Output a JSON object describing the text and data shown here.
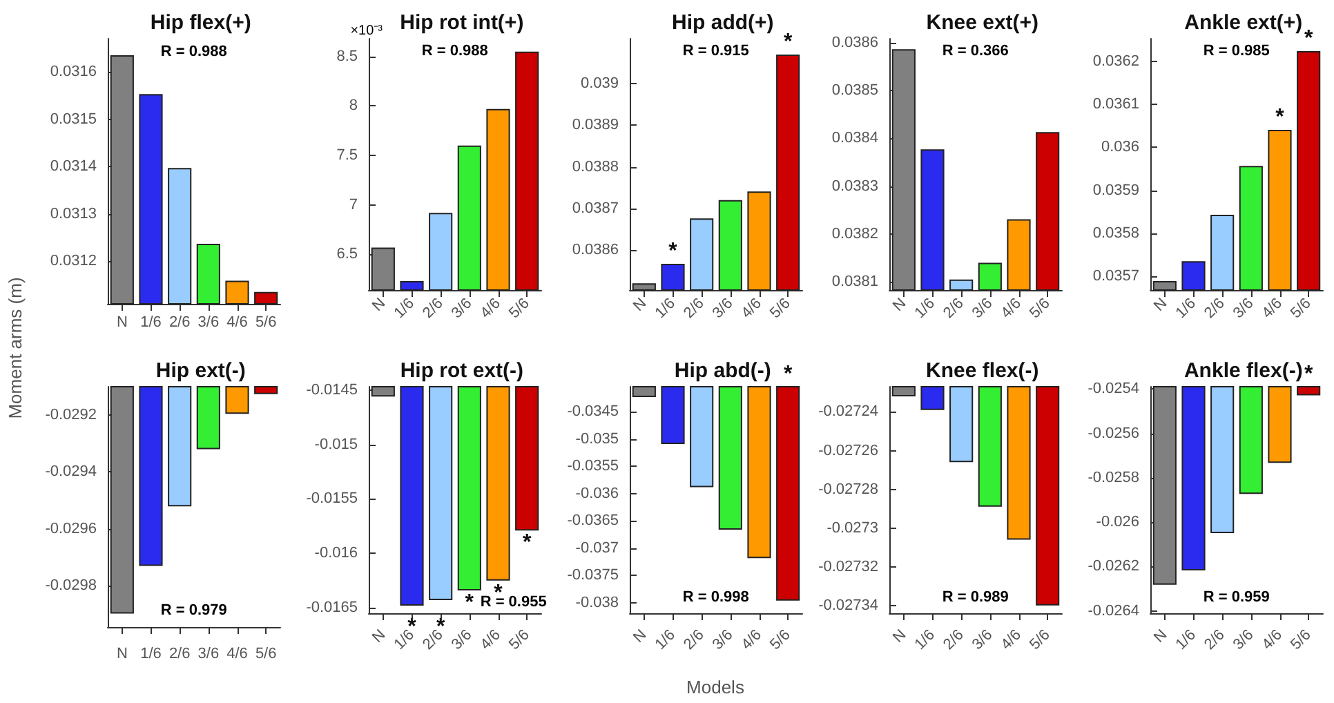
{
  "chart_data": [
    {
      "type": "bar",
      "title": "Hip flex(+)",
      "ylabel": "Moment arms (m)",
      "categories": [
        "N",
        "1/6",
        "2/6",
        "3/6",
        "4/6",
        "5/6"
      ],
      "values": [
        0.031635,
        0.031553,
        0.031397,
        0.031237,
        0.031159,
        0.031135
      ],
      "colors": [
        "#808080",
        "#2b2bf0",
        "#99ccff",
        "#33ee33",
        "#ff9900",
        "#cc0000"
      ],
      "ylim": [
        0.03111,
        0.03167
      ],
      "yticks": [
        0.0312,
        0.0313,
        0.0314,
        0.0315,
        0.0316
      ],
      "annotations": [
        "R = 0.988"
      ]
    },
    {
      "type": "bar",
      "title": "Hip rot int(+)",
      "categories": [
        "N",
        "1/6",
        "2/6",
        "3/6",
        "4/6",
        "5/6"
      ],
      "values": [
        6.57,
        6.23,
        6.92,
        7.6,
        7.97,
        8.55
      ],
      "colors": [
        "#808080",
        "#2b2bf0",
        "#99ccff",
        "#33ee33",
        "#ff9900",
        "#cc0000"
      ],
      "ylim": [
        6.14,
        8.68
      ],
      "yticks": [
        6.5,
        7,
        7.5,
        8,
        8.5
      ],
      "annotations": [
        "×10⁻³",
        "R = 0.988"
      ]
    },
    {
      "type": "bar",
      "title": "Hip add(+)",
      "categories": [
        "N",
        "1/6",
        "2/6",
        "3/6",
        "4/6",
        "5/6"
      ],
      "values": [
        0.03852,
        0.038567,
        0.038676,
        0.03872,
        0.038741,
        0.03907
      ],
      "colors": [
        "#808080",
        "#2b2bf0",
        "#99ccff",
        "#33ee33",
        "#ff9900",
        "#cc0000"
      ],
      "ylim": [
        0.038504,
        0.039108
      ],
      "yticks": [
        0.0386,
        0.0387,
        0.0388,
        0.0389,
        0.039
      ],
      "annotations": [
        "R = 0.915",
        {
          "text": "*",
          "x": "1/6",
          "y": 0.038567
        },
        {
          "text": "*",
          "x": "5/6",
          "y": 0.03907
        }
      ]
    },
    {
      "type": "bar",
      "title": "Knee ext(+)",
      "categories": [
        "N",
        "1/6",
        "2/6",
        "3/6",
        "4/6",
        "5/6"
      ],
      "values": [
        0.038586,
        0.038377,
        0.038105,
        0.03814,
        0.038231,
        0.038413
      ],
      "colors": [
        "#808080",
        "#2b2bf0",
        "#99ccff",
        "#33ee33",
        "#ff9900",
        "#cc0000"
      ],
      "ylim": [
        0.038083,
        0.038608
      ],
      "yticks": [
        0.0381,
        0.0382,
        0.0383,
        0.0384,
        0.0385,
        0.0386
      ],
      "annotations": [
        "R = 0.366"
      ]
    },
    {
      "type": "bar",
      "title": "Ankle ext(+)",
      "categories": [
        "N",
        "1/6",
        "2/6",
        "3/6",
        "4/6",
        "5/6"
      ],
      "values": [
        0.035689,
        0.035735,
        0.035843,
        0.035957,
        0.036041,
        0.036224
      ],
      "colors": [
        "#808080",
        "#2b2bf0",
        "#99ccff",
        "#33ee33",
        "#ff9900",
        "#cc0000"
      ],
      "ylim": [
        0.035668,
        0.036253
      ],
      "yticks": [
        0.0357,
        0.0358,
        0.0359,
        0.036,
        0.0361,
        0.0362
      ],
      "annotations": [
        "R = 0.985",
        {
          "text": "*",
          "x": "4/6",
          "y": 0.036041
        },
        {
          "text": "*",
          "x": "5/6",
          "y": 0.036224
        }
      ]
    },
    {
      "type": "bar",
      "title": "Hip ext(-)",
      "categories": [
        "N",
        "1/6",
        "2/6",
        "3/6",
        "4/6",
        "5/6"
      ],
      "values": [
        -0.029897,
        -0.02973,
        -0.029521,
        -0.029321,
        -0.029197,
        -0.029128
      ],
      "colors": [
        "#808080",
        "#2b2bf0",
        "#99ccff",
        "#33ee33",
        "#ff9900",
        "#cc0000"
      ],
      "ylim": [
        -0.029944,
        -0.029102
      ],
      "yticks": [
        -0.0298,
        -0.0296,
        -0.0294,
        -0.0292
      ],
      "annotations": [
        "R = 0.979"
      ]
    },
    {
      "type": "bar",
      "title": "Hip rot ext(-)",
      "categories": [
        "N",
        "1/6",
        "2/6",
        "3/6",
        "4/6",
        "5/6"
      ],
      "values": [
        -0.01456,
        -0.01648,
        -0.01643,
        -0.01634,
        -0.01625,
        -0.01579
      ],
      "colors": [
        "#808080",
        "#2b2bf0",
        "#99ccff",
        "#33ee33",
        "#ff9900",
        "#cc0000"
      ],
      "ylim": [
        -0.01655,
        -0.01447
      ],
      "yticks": [
        -0.0165,
        -0.016,
        -0.0155,
        -0.015,
        -0.0145
      ],
      "annotations": [
        "R = 0.955",
        {
          "text": "*",
          "x": "1/6",
          "y": -0.01648
        },
        {
          "text": "*",
          "x": "2/6",
          "y": -0.01643
        },
        {
          "text": "*",
          "x": "3/6",
          "y": -0.01634
        },
        {
          "text": "*",
          "x": "4/6",
          "y": -0.01625
        },
        {
          "text": "*",
          "x": "5/6",
          "y": -0.01579
        }
      ]
    },
    {
      "type": "bar",
      "title": "Hip abd(-)",
      "xlabel": "Models",
      "categories": [
        "N",
        "1/6",
        "2/6",
        "3/6",
        "4/6",
        "5/6"
      ],
      "values": [
        -0.03423,
        -0.03509,
        -0.03588,
        -0.03666,
        -0.03718,
        -0.03796
      ],
      "colors": [
        "#808080",
        "#2b2bf0",
        "#99ccff",
        "#33ee33",
        "#ff9900",
        "#cc0000"
      ],
      "ylim": [
        -0.03819,
        -0.03404
      ],
      "yticks": [
        -0.038,
        -0.0375,
        -0.037,
        -0.0365,
        -0.036,
        -0.0355,
        -0.035,
        -0.0345
      ],
      "annotations": [
        "R = 0.998",
        {
          "text": "*",
          "x": "5/6",
          "y": -0.03404
        }
      ]
    },
    {
      "type": "bar",
      "title": "Knee flex(-)",
      "categories": [
        "N",
        "1/6",
        "2/6",
        "3/6",
        "4/6",
        "5/6"
      ],
      "values": [
        -0.027232,
        -0.027239,
        -0.027266,
        -0.027289,
        -0.027306,
        -0.02734
      ],
      "colors": [
        "#808080",
        "#2b2bf0",
        "#99ccff",
        "#33ee33",
        "#ff9900",
        "#cc0000"
      ],
      "ylim": [
        -0.027344,
        -0.027227
      ],
      "yticks": [
        -0.02734,
        -0.02732,
        -0.0273,
        -0.02728,
        -0.02726,
        -0.02724
      ],
      "annotations": [
        "R = 0.989"
      ]
    },
    {
      "type": "bar",
      "title": "Ankle flex(-)",
      "categories": [
        "N",
        "1/6",
        "2/6",
        "3/6",
        "4/6",
        "5/6"
      ],
      "values": [
        -0.026282,
        -0.026217,
        -0.026049,
        -0.025873,
        -0.025733,
        -0.025429
      ],
      "colors": [
        "#808080",
        "#2b2bf0",
        "#99ccff",
        "#33ee33",
        "#ff9900",
        "#cc0000"
      ],
      "ylim": [
        -0.02641,
        -0.02539
      ],
      "yticks": [
        -0.0264,
        -0.0262,
        -0.026,
        -0.0258,
        -0.0256,
        -0.0254
      ],
      "annotations": [
        "R = 0.959",
        {
          "text": "*",
          "x": "5/6",
          "y": -0.02539
        }
      ]
    }
  ]
}
